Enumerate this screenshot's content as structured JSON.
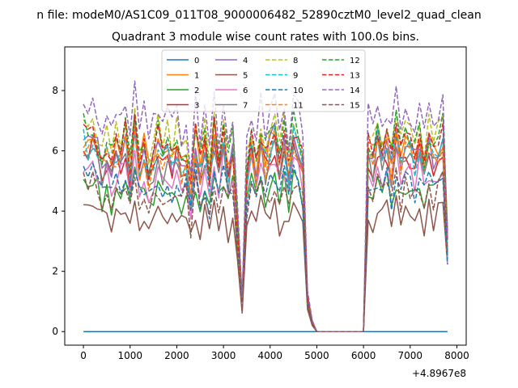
{
  "chart_data": {
    "type": "line",
    "suptitle": "n file: modeM0/AS1C09_011T08_9000006482_52890cztM0_level2_quad_clean",
    "title": "Quadrant 3 module wise count rates with 100.0s bins.",
    "xlabel": "",
    "ylabel": "",
    "x_offset_label": "+4.8967e8",
    "xlim": [
      -400,
      8200
    ],
    "ylim": [
      -0.45,
      9.45
    ],
    "xticks": [
      0,
      1000,
      2000,
      3000,
      4000,
      5000,
      6000,
      7000,
      8000
    ],
    "yticks": [
      0,
      2,
      4,
      6,
      8
    ],
    "legend_position": "upper-center",
    "grid": false,
    "profile": {
      "x": [
        0,
        100,
        200,
        300,
        400,
        500,
        600,
        700,
        800,
        900,
        1000,
        1100,
        1200,
        1300,
        1400,
        1500,
        1600,
        1700,
        1800,
        1900,
        2000,
        2100,
        2200,
        2300,
        2400,
        2500,
        2600,
        2700,
        2800,
        2900,
        3000,
        3100,
        3200,
        3300,
        3400,
        3500,
        3600,
        3700,
        3800,
        3900,
        4000,
        4100,
        4200,
        4300,
        4400,
        4500,
        4600,
        4700,
        4800,
        4900,
        5000,
        6000,
        6100,
        6200,
        6300,
        6400,
        6500,
        6600,
        6700,
        6800,
        6900,
        7000,
        7100,
        7200,
        7300,
        7400,
        7500,
        7600,
        7700,
        7800
      ],
      "note": "relative shape shared by series (fraction of series level)",
      "shape": [
        1.0,
        0.97,
        1.0,
        0.95,
        0.88,
        0.92,
        0.86,
        0.94,
        0.93,
        1.0,
        0.82,
        1.05,
        0.87,
        0.95,
        0.82,
        0.9,
        0.98,
        0.86,
        0.95,
        0.88,
        0.97,
        0.85,
        0.92,
        0.72,
        1.0,
        0.84,
        0.98,
        0.8,
        1.03,
        0.85,
        1.02,
        0.83,
        0.95,
        0.55,
        0.15,
        0.82,
        0.97,
        0.85,
        1.0,
        0.88,
        0.95,
        1.02,
        0.87,
        0.98,
        0.82,
        1.02,
        0.95,
        0.85,
        0.18,
        0.05,
        0.0,
        0.0,
        0.95,
        0.9,
        1.0,
        0.92,
        0.98,
        0.86,
        1.02,
        0.9,
        1.0,
        0.95,
        0.88,
        1.0,
        0.85,
        0.97,
        0.9,
        0.96,
        1.0,
        0.45
      ]
    },
    "series": [
      {
        "name": "0",
        "style": "solid",
        "color": "#1f77b4",
        "level": 0.0
      },
      {
        "name": "1",
        "style": "solid",
        "color": "#ff7f0e",
        "level": 6.5
      },
      {
        "name": "2",
        "style": "solid",
        "color": "#2ca02c",
        "level": 5.0
      },
      {
        "name": "3",
        "style": "solid",
        "color": "#d62728",
        "level": 6.1
      },
      {
        "name": "4",
        "style": "solid",
        "color": "#9467bd",
        "level": 6.4
      },
      {
        "name": "5",
        "style": "solid",
        "color": "#8c564b",
        "level": 4.1
      },
      {
        "name": "6",
        "style": "solid",
        "color": "#e377c2",
        "level": 5.6
      },
      {
        "name": "7",
        "style": "solid",
        "color": "#7f7f7f",
        "level": 6.0
      },
      {
        "name": "8",
        "style": "dashed",
        "color": "#bcbd22",
        "level": 7.0
      },
      {
        "name": "9",
        "style": "dashed",
        "color": "#17becf",
        "level": 6.3
      },
      {
        "name": "10",
        "style": "dashed",
        "color": "#1f77b4",
        "level": 5.2
      },
      {
        "name": "11",
        "style": "dashed",
        "color": "#ff7f0e",
        "level": 6.2
      },
      {
        "name": "12",
        "style": "dashed",
        "color": "#2ca02c",
        "level": 6.8
      },
      {
        "name": "13",
        "style": "dashed",
        "color": "#d62728",
        "level": 6.6
      },
      {
        "name": "14",
        "style": "dashed",
        "color": "#9467bd",
        "level": 7.6
      },
      {
        "name": "15",
        "style": "dashed",
        "color": "#8c564b",
        "level": 4.9
      }
    ]
  }
}
